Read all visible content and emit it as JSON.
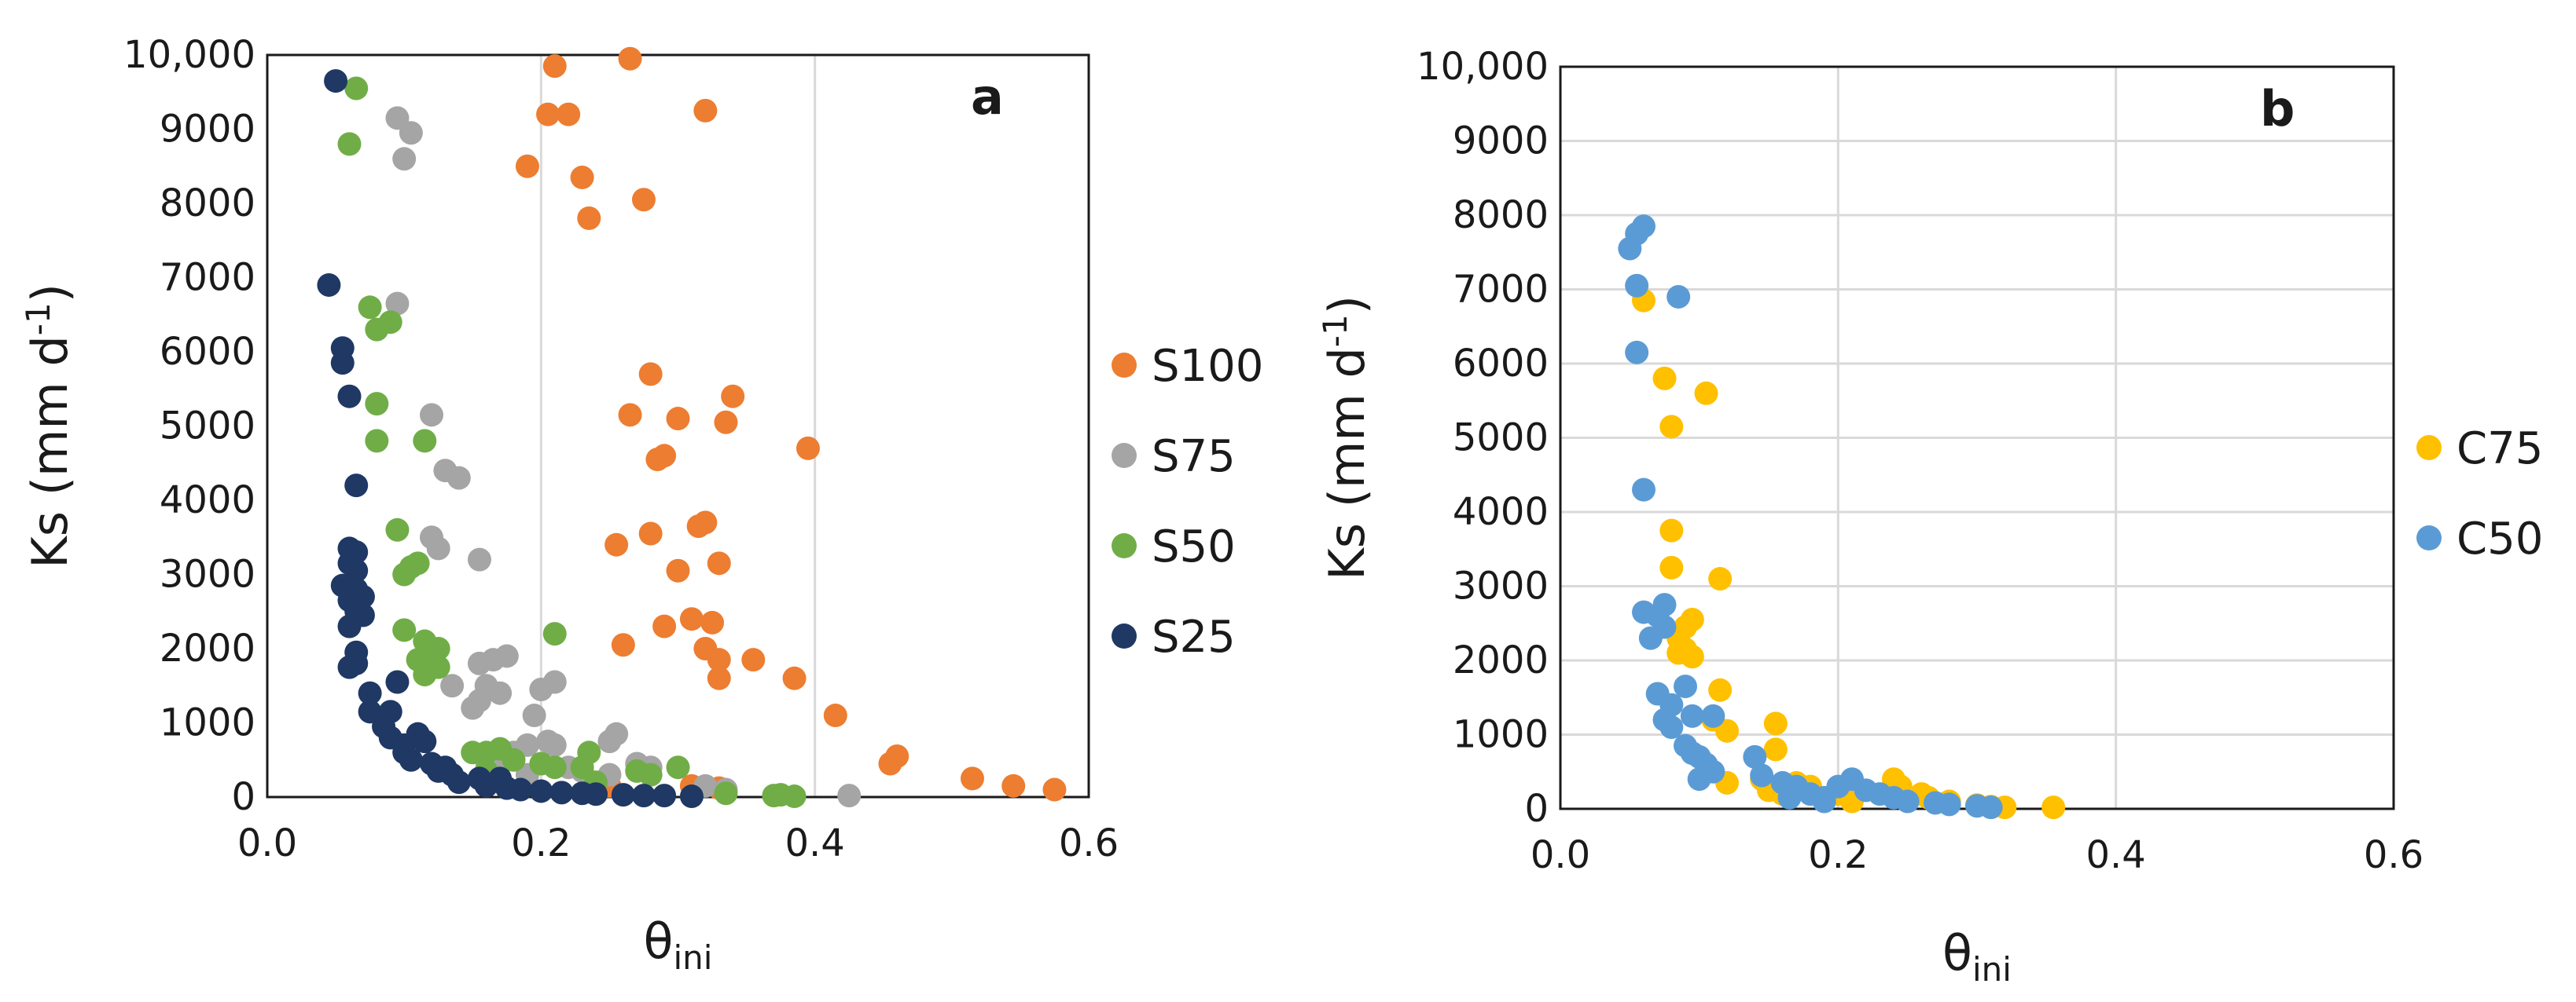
{
  "chart_data": [
    {
      "type": "scatter",
      "panel_label": "a",
      "xlabel": "θini",
      "xlabel_main": "θ",
      "xlabel_sub": "ini",
      "ylabel": "Ks (mm d-1)",
      "ylabel_main": "Ks (mm d",
      "ylabel_sup": "-1",
      "ylabel_close": ")",
      "xlim": [
        0,
        0.6
      ],
      "ylim": [
        0,
        10000
      ],
      "xticks": [
        "0.0",
        "0.2",
        "0.4",
        "0.6"
      ],
      "yticks": [
        "0",
        "1000",
        "2000",
        "3000",
        "4000",
        "5000",
        "6000",
        "7000",
        "8000",
        "9000",
        "10,000"
      ],
      "grid": "vertical",
      "legend_position": "right",
      "series": [
        {
          "name": "S100",
          "color": "#ED7D31",
          "points": [
            [
              0.21,
              9850
            ],
            [
              0.265,
              9950
            ],
            [
              0.205,
              9200
            ],
            [
              0.22,
              9200
            ],
            [
              0.32,
              9250
            ],
            [
              0.19,
              8500
            ],
            [
              0.23,
              8350
            ],
            [
              0.235,
              7800
            ],
            [
              0.275,
              8050
            ],
            [
              0.28,
              5700
            ],
            [
              0.265,
              5150
            ],
            [
              0.3,
              5100
            ],
            [
              0.335,
              5050
            ],
            [
              0.34,
              5400
            ],
            [
              0.395,
              4700
            ],
            [
              0.285,
              4550
            ],
            [
              0.29,
              4600
            ],
            [
              0.255,
              3400
            ],
            [
              0.28,
              3550
            ],
            [
              0.315,
              3650
            ],
            [
              0.32,
              3700
            ],
            [
              0.3,
              3050
            ],
            [
              0.33,
              3150
            ],
            [
              0.29,
              2300
            ],
            [
              0.31,
              2400
            ],
            [
              0.325,
              2350
            ],
            [
              0.26,
              2050
            ],
            [
              0.32,
              2000
            ],
            [
              0.33,
              1850
            ],
            [
              0.355,
              1850
            ],
            [
              0.33,
              1600
            ],
            [
              0.385,
              1600
            ],
            [
              0.415,
              1100
            ],
            [
              0.46,
              550
            ],
            [
              0.455,
              450
            ],
            [
              0.515,
              250
            ],
            [
              0.545,
              150
            ],
            [
              0.575,
              100
            ],
            [
              0.31,
              150
            ],
            [
              0.33,
              120
            ],
            [
              0.25,
              150
            ]
          ]
        },
        {
          "name": "S75",
          "color": "#A5A5A5",
          "points": [
            [
              0.095,
              9150
            ],
            [
              0.105,
              8950
            ],
            [
              0.1,
              8600
            ],
            [
              0.095,
              6650
            ],
            [
              0.12,
              5150
            ],
            [
              0.13,
              4400
            ],
            [
              0.14,
              4300
            ],
            [
              0.12,
              3500
            ],
            [
              0.125,
              3350
            ],
            [
              0.155,
              3200
            ],
            [
              0.155,
              1800
            ],
            [
              0.165,
              1850
            ],
            [
              0.175,
              1900
            ],
            [
              0.16,
              1500
            ],
            [
              0.17,
              1400
            ],
            [
              0.155,
              1300
            ],
            [
              0.15,
              1200
            ],
            [
              0.195,
              1100
            ],
            [
              0.2,
              1450
            ],
            [
              0.21,
              1550
            ],
            [
              0.135,
              1500
            ],
            [
              0.205,
              750
            ],
            [
              0.21,
              700
            ],
            [
              0.255,
              850
            ],
            [
              0.25,
              750
            ],
            [
              0.19,
              700
            ],
            [
              0.18,
              600
            ],
            [
              0.175,
              500
            ],
            [
              0.27,
              450
            ],
            [
              0.28,
              400
            ],
            [
              0.22,
              400
            ],
            [
              0.25,
              300
            ],
            [
              0.19,
              300
            ],
            [
              0.32,
              150
            ],
            [
              0.335,
              100
            ],
            [
              0.425,
              20
            ],
            [
              0.23,
              350
            ],
            [
              0.16,
              500
            ]
          ]
        },
        {
          "name": "S50",
          "color": "#70AD47",
          "points": [
            [
              0.065,
              9550
            ],
            [
              0.06,
              8800
            ],
            [
              0.075,
              6600
            ],
            [
              0.08,
              6300
            ],
            [
              0.09,
              6400
            ],
            [
              0.08,
              5300
            ],
            [
              0.08,
              4800
            ],
            [
              0.115,
              4800
            ],
            [
              0.095,
              3600
            ],
            [
              0.11,
              3150
            ],
            [
              0.105,
              3100
            ],
            [
              0.1,
              3000
            ],
            [
              0.1,
              2250
            ],
            [
              0.115,
              2100
            ],
            [
              0.12,
              2000
            ],
            [
              0.125,
              2000
            ],
            [
              0.11,
              1850
            ],
            [
              0.12,
              1800
            ],
            [
              0.125,
              1750
            ],
            [
              0.115,
              1650
            ],
            [
              0.21,
              2200
            ],
            [
              0.17,
              650
            ],
            [
              0.16,
              600
            ],
            [
              0.15,
              600
            ],
            [
              0.18,
              500
            ],
            [
              0.2,
              450
            ],
            [
              0.21,
              400
            ],
            [
              0.23,
              400
            ],
            [
              0.235,
              600
            ],
            [
              0.27,
              350
            ],
            [
              0.28,
              300
            ],
            [
              0.3,
              400
            ],
            [
              0.335,
              50
            ],
            [
              0.37,
              20
            ],
            [
              0.375,
              30
            ],
            [
              0.385,
              10
            ],
            [
              0.24,
              200
            ],
            [
              0.16,
              350
            ]
          ]
        },
        {
          "name": "S25",
          "color": "#1F3864",
          "points": [
            [
              0.05,
              9650
            ],
            [
              0.045,
              6900
            ],
            [
              0.055,
              6050
            ],
            [
              0.055,
              5850
            ],
            [
              0.06,
              5400
            ],
            [
              0.065,
              4200
            ],
            [
              0.06,
              3350
            ],
            [
              0.065,
              3300
            ],
            [
              0.06,
              3150
            ],
            [
              0.065,
              3050
            ],
            [
              0.055,
              2850
            ],
            [
              0.065,
              2800
            ],
            [
              0.07,
              2700
            ],
            [
              0.06,
              2650
            ],
            [
              0.065,
              2500
            ],
            [
              0.07,
              2450
            ],
            [
              0.06,
              2300
            ],
            [
              0.065,
              1950
            ],
            [
              0.06,
              1750
            ],
            [
              0.065,
              1800
            ],
            [
              0.075,
              1400
            ],
            [
              0.075,
              1150
            ],
            [
              0.09,
              1150
            ],
            [
              0.085,
              950
            ],
            [
              0.09,
              800
            ],
            [
              0.1,
              700
            ],
            [
              0.11,
              850
            ],
            [
              0.115,
              750
            ],
            [
              0.1,
              600
            ],
            [
              0.105,
              500
            ],
            [
              0.12,
              450
            ],
            [
              0.125,
              350
            ],
            [
              0.135,
              300
            ],
            [
              0.14,
              200
            ],
            [
              0.155,
              250
            ],
            [
              0.16,
              150
            ],
            [
              0.175,
              120
            ],
            [
              0.185,
              100
            ],
            [
              0.2,
              80
            ],
            [
              0.215,
              60
            ],
            [
              0.23,
              50
            ],
            [
              0.24,
              40
            ],
            [
              0.26,
              30
            ],
            [
              0.275,
              20
            ],
            [
              0.29,
              20
            ],
            [
              0.31,
              10
            ],
            [
              0.095,
              1550
            ],
            [
              0.13,
              400
            ],
            [
              0.17,
              250
            ]
          ]
        }
      ]
    },
    {
      "type": "scatter",
      "panel_label": "b",
      "xlabel": "θini",
      "xlabel_main": "θ",
      "xlabel_sub": "ini",
      "ylabel": "Ks (mm d-1)",
      "ylabel_main": "Ks (mm d",
      "ylabel_sup": "-1",
      "ylabel_close": ")",
      "xlim": [
        0,
        0.6
      ],
      "ylim": [
        0,
        10000
      ],
      "xticks": [
        "0.0",
        "0.2",
        "0.4",
        "0.6"
      ],
      "yticks": [
        "0",
        "1000",
        "2000",
        "3000",
        "4000",
        "5000",
        "6000",
        "7000",
        "8000",
        "9000",
        "10,000"
      ],
      "grid": "both",
      "legend_position": "right",
      "series": [
        {
          "name": "C75",
          "color": "#FFC000",
          "points": [
            [
              0.06,
              6850
            ],
            [
              0.075,
              5800
            ],
            [
              0.08,
              5150
            ],
            [
              0.105,
              5600
            ],
            [
              0.08,
              3750
            ],
            [
              0.08,
              3250
            ],
            [
              0.115,
              3100
            ],
            [
              0.095,
              2550
            ],
            [
              0.09,
              2450
            ],
            [
              0.085,
              2300
            ],
            [
              0.09,
              2150
            ],
            [
              0.095,
              2050
            ],
            [
              0.085,
              2100
            ],
            [
              0.115,
              1600
            ],
            [
              0.11,
              1200
            ],
            [
              0.12,
              1050
            ],
            [
              0.155,
              1150
            ],
            [
              0.155,
              800
            ],
            [
              0.145,
              400
            ],
            [
              0.15,
              250
            ],
            [
              0.16,
              200
            ],
            [
              0.17,
              350
            ],
            [
              0.18,
              300
            ],
            [
              0.19,
              150
            ],
            [
              0.21,
              100
            ],
            [
              0.24,
              400
            ],
            [
              0.245,
              300
            ],
            [
              0.26,
              200
            ],
            [
              0.265,
              150
            ],
            [
              0.28,
              100
            ],
            [
              0.3,
              50
            ],
            [
              0.31,
              30
            ],
            [
              0.32,
              20
            ],
            [
              0.355,
              20
            ],
            [
              0.12,
              350
            ],
            [
              0.2,
              200
            ]
          ]
        },
        {
          "name": "C50",
          "color": "#5B9BD5",
          "points": [
            [
              0.05,
              7550
            ],
            [
              0.055,
              7750
            ],
            [
              0.06,
              7850
            ],
            [
              0.055,
              7050
            ],
            [
              0.085,
              6900
            ],
            [
              0.055,
              6150
            ],
            [
              0.06,
              4300
            ],
            [
              0.06,
              2650
            ],
            [
              0.07,
              2600
            ],
            [
              0.075,
              2750
            ],
            [
              0.065,
              2300
            ],
            [
              0.075,
              2450
            ],
            [
              0.07,
              1550
            ],
            [
              0.08,
              1400
            ],
            [
              0.075,
              1200
            ],
            [
              0.08,
              1100
            ],
            [
              0.09,
              1650
            ],
            [
              0.095,
              1250
            ],
            [
              0.11,
              1250
            ],
            [
              0.09,
              850
            ],
            [
              0.095,
              750
            ],
            [
              0.1,
              700
            ],
            [
              0.105,
              600
            ],
            [
              0.11,
              500
            ],
            [
              0.1,
              400
            ],
            [
              0.14,
              700
            ],
            [
              0.145,
              450
            ],
            [
              0.16,
              350
            ],
            [
              0.17,
              300
            ],
            [
              0.18,
              200
            ],
            [
              0.19,
              150
            ],
            [
              0.2,
              300
            ],
            [
              0.21,
              400
            ],
            [
              0.22,
              250
            ],
            [
              0.23,
              200
            ],
            [
              0.24,
              150
            ],
            [
              0.25,
              100
            ],
            [
              0.27,
              80
            ],
            [
              0.28,
              60
            ],
            [
              0.3,
              40
            ],
            [
              0.31,
              20
            ],
            [
              0.165,
              150
            ],
            [
              0.19,
              100
            ]
          ]
        }
      ]
    }
  ]
}
